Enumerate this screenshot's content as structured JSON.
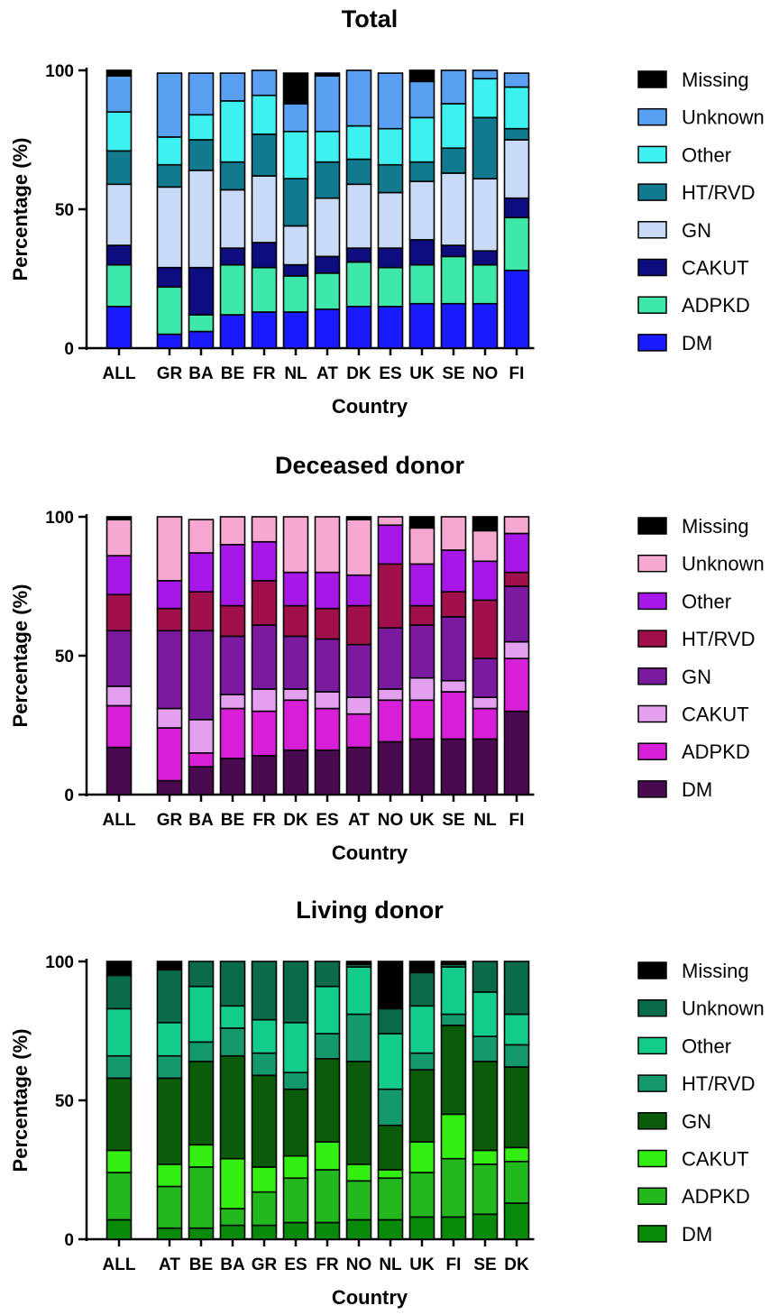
{
  "stack_order": [
    "DM",
    "ADPKD",
    "CAKUT",
    "GN",
    "HT/RVD",
    "Other",
    "Unknown",
    "Missing"
  ],
  "chart_data": [
    {
      "type": "bar",
      "stacked": true,
      "title": "Total",
      "xlabel": "Country",
      "ylabel": "Percentage (%)",
      "ylim": [
        0,
        100
      ],
      "yticks": [
        0,
        50,
        100
      ],
      "legend_position": "right",
      "categories": [
        "ALL",
        "GR",
        "BA",
        "BE",
        "FR",
        "NL",
        "AT",
        "DK",
        "ES",
        "UK",
        "SE",
        "NO",
        "FI"
      ],
      "series": [
        {
          "name": "DM",
          "color": "#1a1aff",
          "values": [
            15,
            5,
            6,
            12,
            13,
            13,
            14,
            15,
            15,
            16,
            16,
            16,
            28
          ]
        },
        {
          "name": "ADPKD",
          "color": "#3de8a8",
          "values": [
            15,
            17,
            6,
            18,
            16,
            13,
            13,
            16,
            14,
            14,
            17,
            14,
            19
          ]
        },
        {
          "name": "CAKUT",
          "color": "#0d0d80",
          "values": [
            7,
            7,
            17,
            6,
            9,
            4,
            6,
            5,
            7,
            9,
            4,
            5,
            7
          ]
        },
        {
          "name": "GN",
          "color": "#c8daf5",
          "values": [
            22,
            29,
            35,
            21,
            24,
            14,
            21,
            23,
            20,
            21,
            26,
            26,
            21
          ]
        },
        {
          "name": "HT/RVD",
          "color": "#127a8f",
          "values": [
            12,
            8,
            11,
            10,
            15,
            17,
            13,
            9,
            10,
            7,
            9,
            22,
            4
          ]
        },
        {
          "name": "Other",
          "color": "#3ff0f0",
          "values": [
            14,
            10,
            9,
            22,
            14,
            17,
            11,
            12,
            13,
            16,
            16,
            14,
            15
          ]
        },
        {
          "name": "Unknown",
          "color": "#5aa0f2",
          "values": [
            13,
            23,
            15,
            10,
            9,
            10,
            20,
            20,
            20,
            13,
            12,
            3,
            5
          ]
        },
        {
          "name": "Missing",
          "color": "#000000",
          "values": [
            2,
            0,
            0,
            0,
            0,
            11,
            1,
            0,
            0,
            4,
            0,
            0,
            0
          ]
        }
      ]
    },
    {
      "type": "bar",
      "stacked": true,
      "title": "Deceased donor",
      "xlabel": "Country",
      "ylabel": "Percentage (%)",
      "ylim": [
        0,
        100
      ],
      "yticks": [
        0,
        50,
        100
      ],
      "legend_position": "right",
      "categories": [
        "ALL",
        "GR",
        "BA",
        "BE",
        "FR",
        "DK",
        "ES",
        "AT",
        "NO",
        "UK",
        "SE",
        "NL",
        "FI"
      ],
      "series": [
        {
          "name": "DM",
          "color": "#4a0a4f",
          "values": [
            17,
            5,
            10,
            13,
            14,
            16,
            16,
            17,
            19,
            20,
            20,
            20,
            30
          ]
        },
        {
          "name": "ADPKD",
          "color": "#d61fd6",
          "values": [
            15,
            19,
            5,
            18,
            16,
            18,
            15,
            12,
            15,
            14,
            17,
            11,
            19
          ]
        },
        {
          "name": "CAKUT",
          "color": "#e2a0ee",
          "values": [
            7,
            7,
            12,
            5,
            8,
            4,
            6,
            6,
            4,
            8,
            4,
            4,
            6
          ]
        },
        {
          "name": "GN",
          "color": "#7a1a9e",
          "values": [
            20,
            28,
            32,
            21,
            23,
            19,
            19,
            19,
            22,
            19,
            23,
            14,
            20
          ]
        },
        {
          "name": "HT/RVD",
          "color": "#a0104a",
          "values": [
            13,
            8,
            14,
            11,
            16,
            11,
            11,
            14,
            23,
            7,
            9,
            21,
            5
          ]
        },
        {
          "name": "Other",
          "color": "#a718e8",
          "values": [
            14,
            10,
            14,
            22,
            14,
            12,
            13,
            11,
            14,
            15,
            15,
            14,
            14
          ]
        },
        {
          "name": "Unknown",
          "color": "#f7a8d2",
          "values": [
            13,
            23,
            12,
            10,
            9,
            20,
            20,
            20,
            3,
            13,
            12,
            11,
            6
          ]
        },
        {
          "name": "Missing",
          "color": "#000000",
          "values": [
            1,
            0,
            0,
            0,
            0,
            0,
            0,
            1,
            0,
            4,
            0,
            5,
            0
          ]
        }
      ]
    },
    {
      "type": "bar",
      "stacked": true,
      "title": "Living donor",
      "xlabel": "Country",
      "ylabel": "Percentage (%)",
      "ylim": [
        0,
        100
      ],
      "yticks": [
        0,
        50,
        100
      ],
      "legend_position": "right",
      "categories": [
        "ALL",
        "AT",
        "BE",
        "BA",
        "GR",
        "ES",
        "FR",
        "NO",
        "NL",
        "UK",
        "FI",
        "SE",
        "DK"
      ],
      "series": [
        {
          "name": "DM",
          "color": "#0a8a0a",
          "values": [
            7,
            4,
            4,
            5,
            5,
            6,
            6,
            7,
            7,
            8,
            8,
            9,
            13
          ]
        },
        {
          "name": "ADPKD",
          "color": "#22b81e",
          "values": [
            17,
            15,
            22,
            6,
            12,
            16,
            19,
            14,
            15,
            16,
            21,
            18,
            15
          ]
        },
        {
          "name": "CAKUT",
          "color": "#33ee11",
          "values": [
            8,
            8,
            8,
            18,
            9,
            8,
            10,
            6,
            3,
            11,
            16,
            5,
            5
          ]
        },
        {
          "name": "GN",
          "color": "#0a5c0a",
          "values": [
            26,
            31,
            30,
            37,
            33,
            24,
            30,
            37,
            16,
            26,
            32,
            32,
            29
          ]
        },
        {
          "name": "HT/RVD",
          "color": "#13996a",
          "values": [
            8,
            8,
            7,
            10,
            8,
            6,
            9,
            17,
            13,
            6,
            4,
            9,
            8
          ]
        },
        {
          "name": "Other",
          "color": "#14cc8a",
          "values": [
            17,
            12,
            20,
            8,
            12,
            18,
            17,
            17,
            20,
            17,
            17,
            16,
            11
          ]
        },
        {
          "name": "Unknown",
          "color": "#0a6b4a",
          "values": [
            12,
            19,
            9,
            16,
            21,
            22,
            9,
            1,
            9,
            12,
            1,
            11,
            19
          ]
        },
        {
          "name": "Missing",
          "color": "#000000",
          "values": [
            5,
            3,
            0,
            0,
            0,
            0,
            0,
            1,
            17,
            4,
            1,
            0,
            0
          ]
        }
      ]
    }
  ]
}
